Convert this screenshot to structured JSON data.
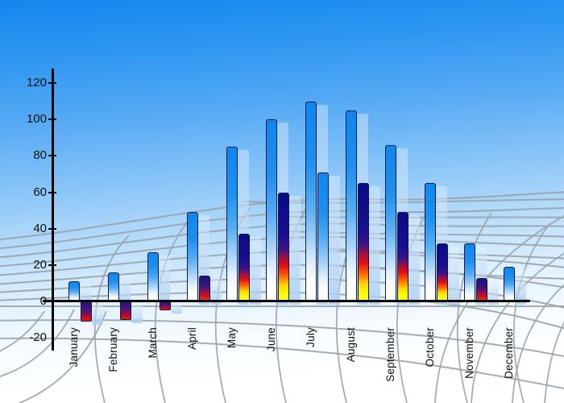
{
  "chart_data": {
    "type": "bar",
    "title": "",
    "xlabel": "",
    "ylabel": "",
    "categories": [
      "January",
      "February",
      "March",
      "April",
      "May",
      "June",
      "July",
      "August",
      "September",
      "October",
      "November",
      "December"
    ],
    "series": [
      {
        "name": "primary-blue-bars",
        "values": [
          11,
          16,
          27,
          49,
          85,
          100,
          110,
          105,
          86,
          65,
          32,
          19
        ]
      },
      {
        "name": "secondary-flame-bars",
        "values": [
          -11,
          -10,
          -5,
          14,
          37,
          60,
          71,
          65,
          49,
          32,
          13,
          null
        ]
      }
    ],
    "secondary_bar_styles": [
      "negative-flame",
      "negative-flame",
      "negative-flame",
      "short-flame",
      "full-flame",
      "full-flame",
      "blue-gradient",
      "full-flame",
      "full-flame",
      "full-flame",
      "short-flame",
      null
    ],
    "yticks": [
      -20,
      0,
      20,
      40,
      60,
      80,
      100,
      120
    ],
    "ytick_labels": [
      "-20",
      "0",
      "20",
      "40",
      "60",
      "80",
      "100",
      "120"
    ],
    "ylim": [
      -27,
      128
    ],
    "legend": "none",
    "grid_style": "decorative curved gray perspective mesh over sky-blue gradient background"
  },
  "colors": {
    "bg_top": "#1486ee",
    "bg_bottom": "#ffffff",
    "bar_blue": "#1287ee",
    "bar_outline": "#0d1b4c",
    "flame_navy": "#0d0d8c",
    "flame_red": "#e01014",
    "flame_yellow": "#fdf500",
    "shadow_blue": "#bcd8f2",
    "grid": "#98a0a8",
    "axis": "#000000",
    "label": "#111111"
  }
}
